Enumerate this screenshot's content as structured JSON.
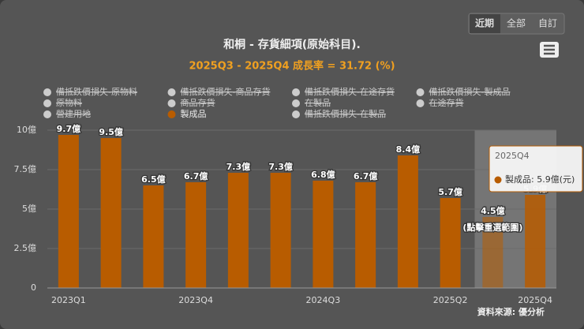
{
  "chart_data": {
    "type": "bar",
    "title": "和桐 - 存貨細項(原始科目).",
    "subtitle": "2025Q3 - 2025Q4 成長率 = 31.72 (%)",
    "buttons": [
      "近期",
      "全部",
      "自訂"
    ],
    "categories": [
      "2023Q1",
      null,
      null,
      "2023Q4",
      null,
      null,
      "2024Q3",
      null,
      null,
      "2025Q2",
      null,
      "2025Q4"
    ],
    "series": [
      {
        "name": "製成品",
        "color": "#b85c00",
        "values": [
          9.7,
          9.5,
          6.5,
          6.7,
          7.3,
          7.3,
          6.8,
          6.7,
          8.4,
          5.7,
          4.5,
          5.9
        ],
        "value_labels": [
          "9.7億",
          "9.5億",
          "6.5億",
          "6.7億",
          "7.3億",
          "7.3億",
          "6.8億",
          "6.7億",
          "8.4億",
          "5.7億",
          "4.5億",
          "5.9億"
        ]
      }
    ],
    "hidden_series": [
      "備抵跌價損失-原物料",
      "備抵跌價損失-商品存貨",
      "備抵跌價損失-在途存貨",
      "備抵跌價損失-製成品",
      "原物料",
      "商品存貨",
      "在製品",
      "在途存貨",
      "營建用地",
      "備抵跌價損失-在製品"
    ],
    "ylim": [
      0,
      10
    ],
    "yticks": [
      0,
      {
        "value": 2.5,
        "label": "2.5億"
      },
      {
        "value": 5,
        "label": "5億"
      },
      {
        "value": 7.5,
        "label": "7.5億"
      },
      {
        "value": 10,
        "label": "10億"
      }
    ],
    "grid": true,
    "annotation": "(點擊重選範圍)",
    "tooltip": {
      "title": "2025Q4",
      "text": "製成品: 5.9億(元)"
    },
    "source": "資料來源: 優分析"
  }
}
